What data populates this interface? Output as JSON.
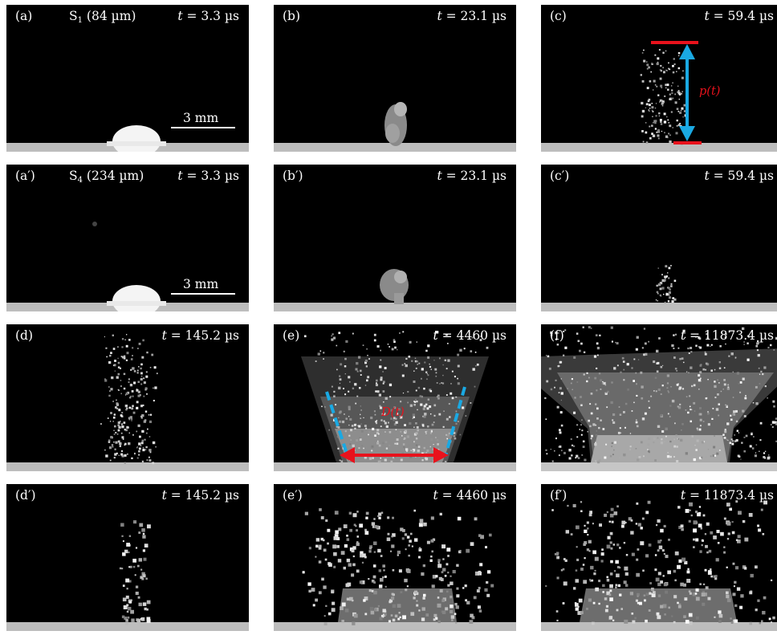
{
  "colors": {
    "background": "#000000",
    "text": "#ffffff",
    "annotation_red": "#e8121c",
    "annotation_blue": "#1aa9e3",
    "floor": "#bdbdbd"
  },
  "scale_bar": {
    "label": "3 mm"
  },
  "sets": {
    "s1": {
      "label_pre": "S",
      "label_sub": "1",
      "label_post": " (84 µm)"
    },
    "s4": {
      "label_pre": "S",
      "label_sub": "4",
      "label_post": " (234 µm)"
    }
  },
  "annotations": {
    "p_label": "p(t)",
    "d_label": "D(t)"
  },
  "panels": [
    {
      "id": "a",
      "label": "(a)",
      "t_var": "t",
      "t_value": " = 3.3 µs"
    },
    {
      "id": "b",
      "label": "(b)",
      "t_var": "t",
      "t_value": " = 23.1 µs"
    },
    {
      "id": "c",
      "label": "(c)",
      "t_var": "t",
      "t_value": " = 59.4 µs"
    },
    {
      "id": "a2",
      "label": "(a′)",
      "t_var": "t",
      "t_value": " = 3.3 µs"
    },
    {
      "id": "b2",
      "label": "(b′)",
      "t_var": "t",
      "t_value": " = 23.1 µs"
    },
    {
      "id": "c2",
      "label": "(c′)",
      "t_var": "t",
      "t_value": " = 59.4 µs"
    },
    {
      "id": "d",
      "label": "(d)",
      "t_var": "t",
      "t_value": " = 145.2 µs"
    },
    {
      "id": "e",
      "label": "(e)",
      "t_var": "t",
      "t_value": " = 4460 µs"
    },
    {
      "id": "f",
      "label": "(f)",
      "t_var": "t",
      "t_value": " = 11873.4 µs"
    },
    {
      "id": "d2",
      "label": "(d′)",
      "t_var": "t",
      "t_value": " = 145.2 µs"
    },
    {
      "id": "e2",
      "label": "(e′)",
      "t_var": "t",
      "t_value": " = 4460 µs"
    },
    {
      "id": "f2",
      "label": "(f′)",
      "t_var": "t",
      "t_value": " = 11873.4 µs"
    }
  ]
}
